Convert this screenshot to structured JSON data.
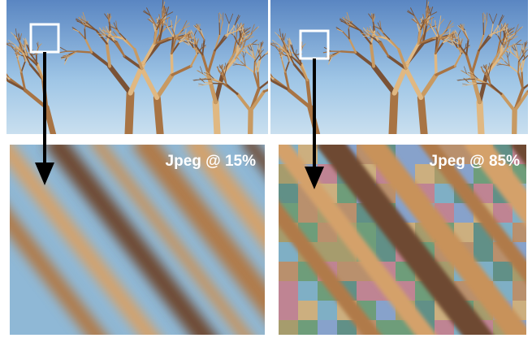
{
  "panels": [
    {
      "label": "Jpeg @ 15%"
    },
    {
      "label": "Jpeg @ 85%"
    }
  ]
}
